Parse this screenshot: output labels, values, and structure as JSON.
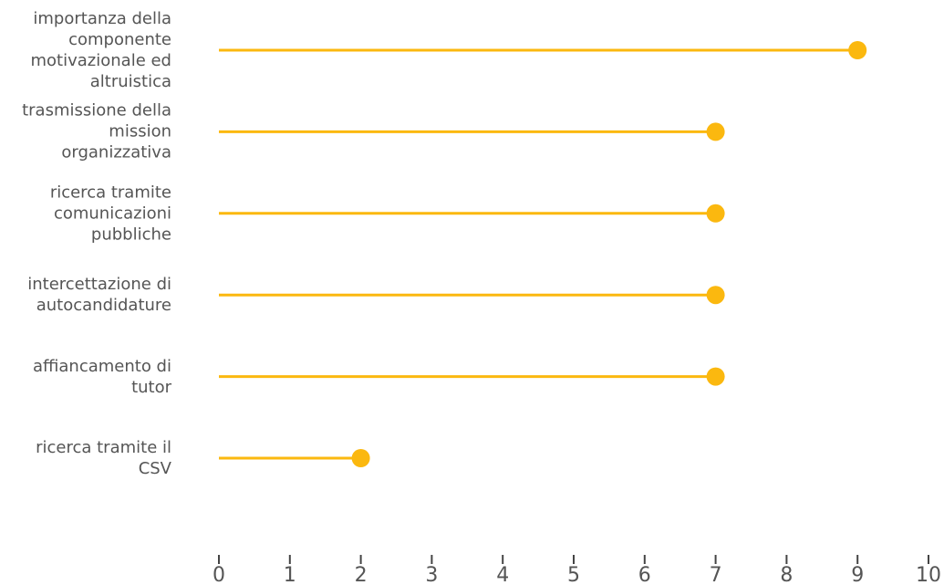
{
  "chart_data": {
    "type": "lollipop",
    "categories": [
      "importanza della componente motivazionale ed altruistica",
      "trasmissione della mission organizzativa",
      "ricerca tramite comunicazioni pubbliche",
      "intercettazione di autocandidature",
      "affiancamento di tutor",
      "ricerca tramite il CSV"
    ],
    "values": [
      9,
      7,
      7,
      7,
      7,
      2
    ],
    "color": "#fbb80f",
    "xlim": [
      0,
      10
    ],
    "xticks": [
      0,
      1,
      2,
      3,
      4,
      5,
      6,
      7,
      8,
      9,
      10
    ]
  }
}
